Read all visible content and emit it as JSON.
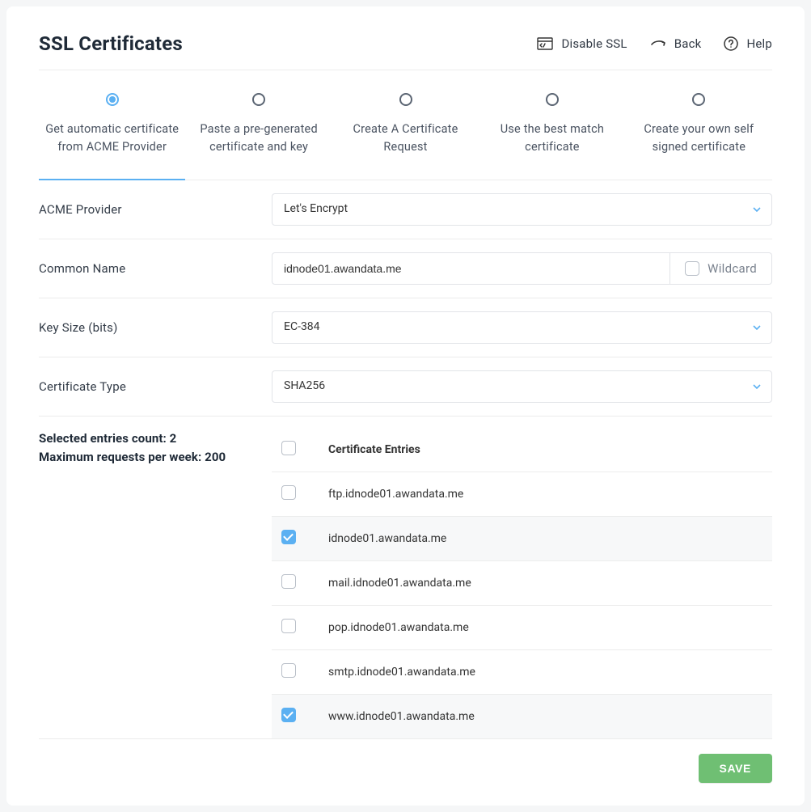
{
  "colors": {
    "card_bg": "#ffffff",
    "page_bg": "#f5f6f7",
    "border": "#ececec",
    "text_primary": "#1f2a37",
    "text_secondary": "#4a5361",
    "accent": "#5bb0f2",
    "save_btn": "#6fbf73"
  },
  "header": {
    "title": "SSL Certificates",
    "actions": {
      "disable_ssl": "Disable SSL",
      "back": "Back",
      "help": "Help"
    }
  },
  "tabs": {
    "items": [
      {
        "label": "Get automatic certificate from ACME Provider",
        "active": true
      },
      {
        "label": "Paste a pre-generated certificate and key",
        "active": false
      },
      {
        "label": "Create A Certificate Request",
        "active": false
      },
      {
        "label": "Use the best match certificate",
        "active": false
      },
      {
        "label": "Create your own self signed certificate",
        "active": false
      }
    ]
  },
  "form": {
    "acme_provider": {
      "label": "ACME Provider",
      "value": "Let's Encrypt"
    },
    "common_name": {
      "label": "Common Name",
      "value": "idnode01.awandata.me",
      "wildcard_label": "Wildcard",
      "wildcard_checked": false
    },
    "key_size": {
      "label": "Key Size (bits)",
      "value": "EC-384"
    },
    "cert_type": {
      "label": "Certificate Type",
      "value": "SHA256"
    }
  },
  "entries": {
    "side_line1": "Selected entries count: 2",
    "side_line2": "Maximum requests per week: 200",
    "header_col": "Certificate Entries",
    "rows": [
      {
        "domain": "ftp.idnode01.awandata.me",
        "checked": false
      },
      {
        "domain": "idnode01.awandata.me",
        "checked": true
      },
      {
        "domain": "mail.idnode01.awandata.me",
        "checked": false
      },
      {
        "domain": "pop.idnode01.awandata.me",
        "checked": false
      },
      {
        "domain": "smtp.idnode01.awandata.me",
        "checked": false
      },
      {
        "domain": "www.idnode01.awandata.me",
        "checked": true
      }
    ]
  },
  "footer": {
    "save": "SAVE"
  }
}
